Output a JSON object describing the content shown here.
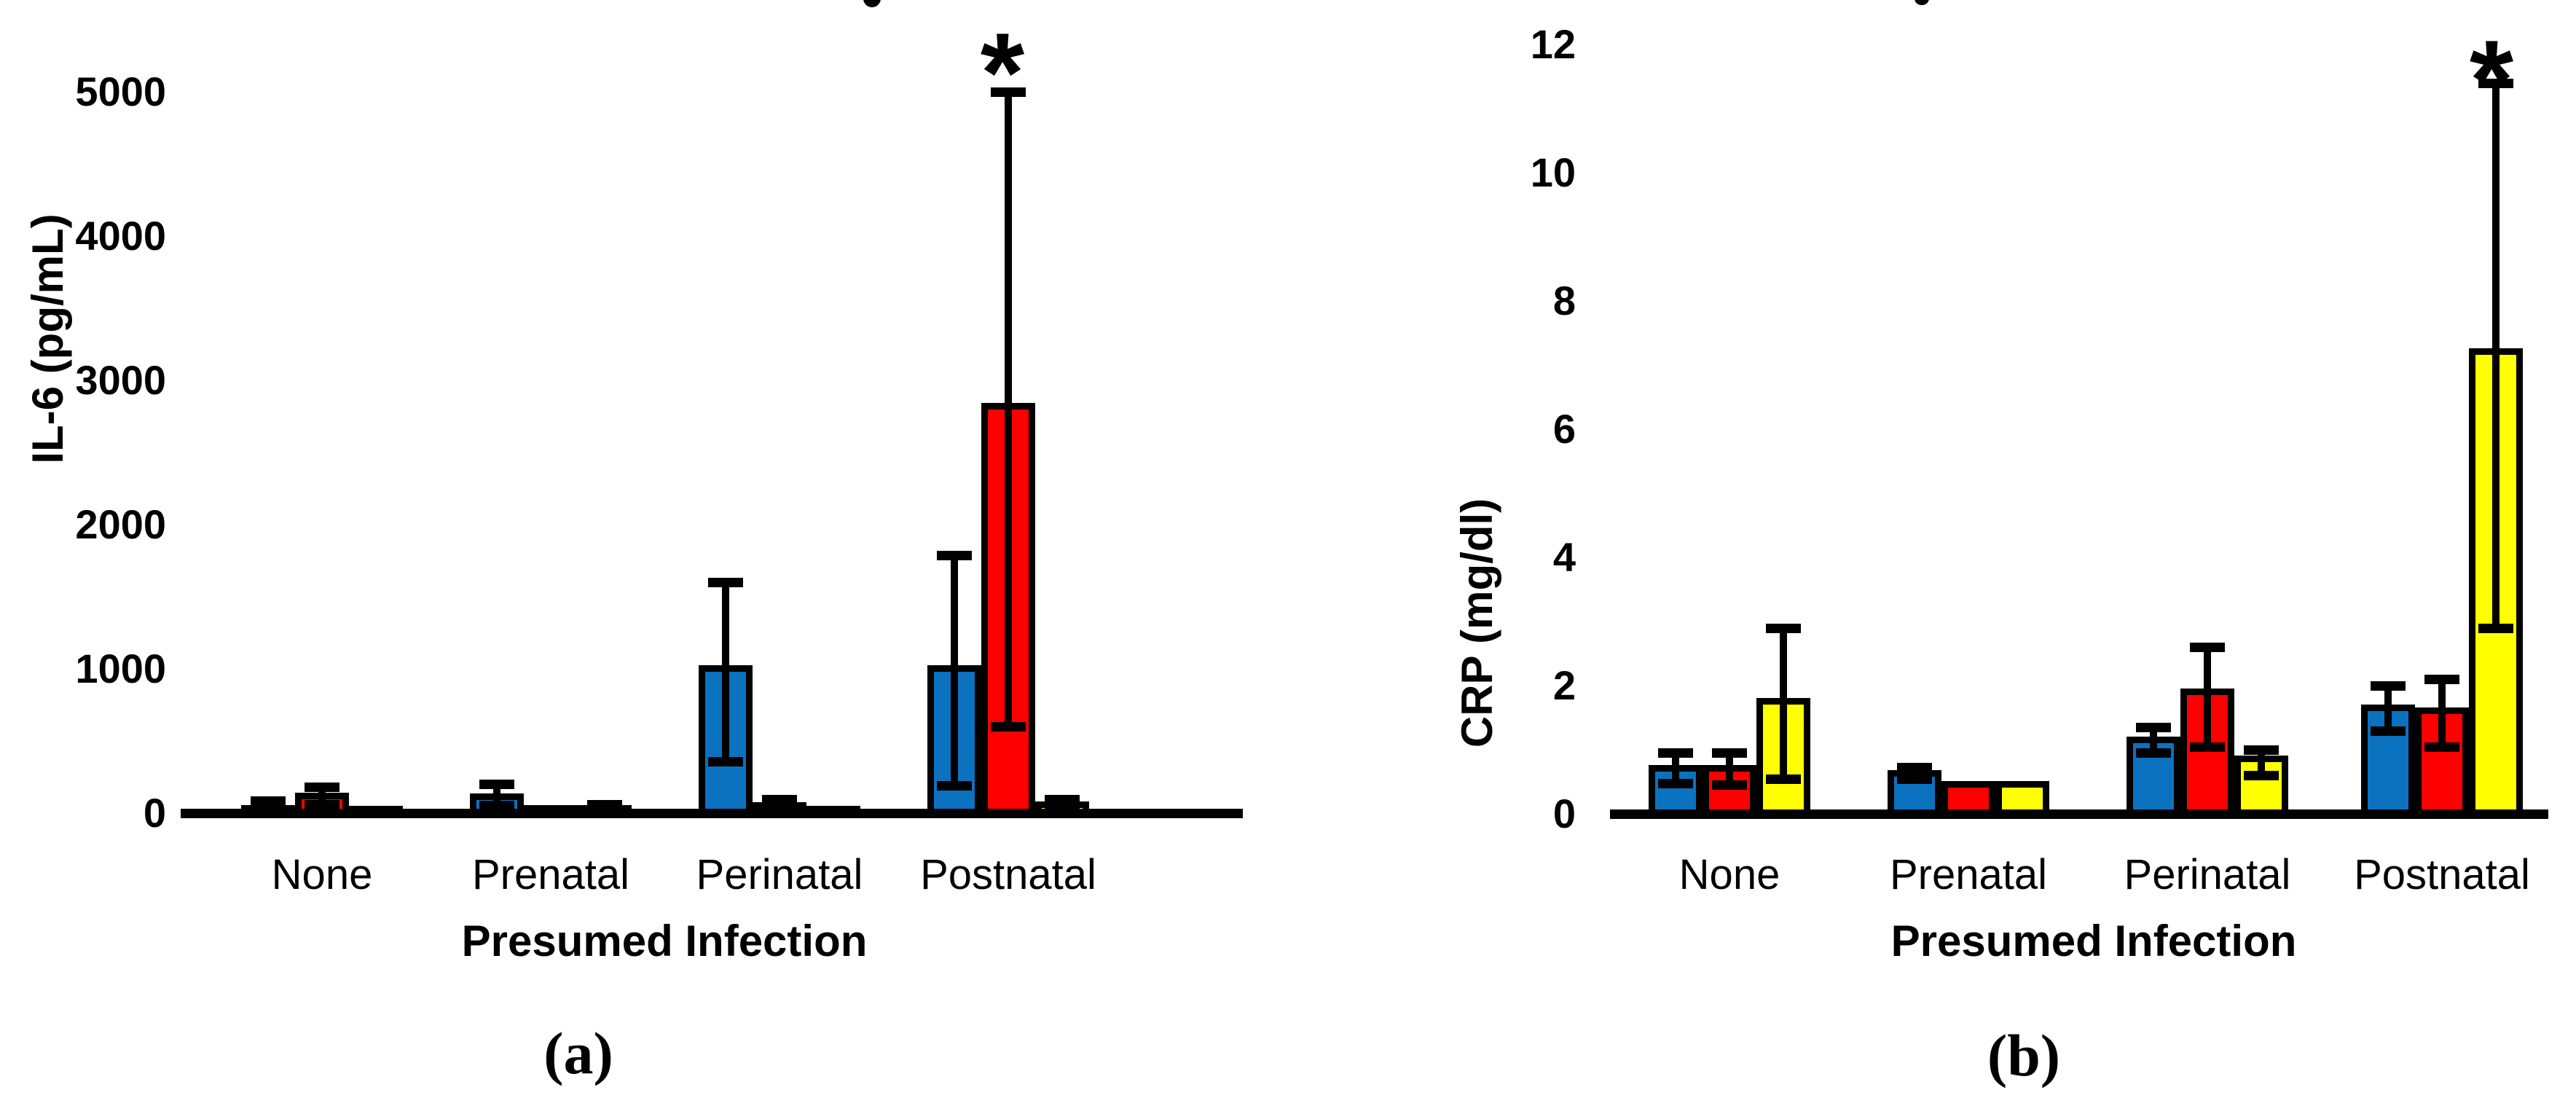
{
  "figure": {
    "background": "#ffffff",
    "significance_marker": "*",
    "colors": {
      "blue": "#0b72c0",
      "red": "#ff0000",
      "yellow": "#ffff00",
      "ink": "#000000"
    },
    "captions": {
      "a": "(a)",
      "b": "(b)"
    }
  },
  "chart_data": [
    {
      "id": "a",
      "type": "bar",
      "title": "",
      "ylabel": "IL-6 (pg/mL)",
      "xlabel": "Presumed Infection",
      "categories": [
        "None",
        "Prenatal",
        "Perinatal",
        "Postnatal"
      ],
      "yticks": [
        0,
        1000,
        2000,
        3000,
        4000,
        5000
      ],
      "ylim": [
        0,
        5000
      ],
      "grid": false,
      "legend": "none",
      "series": [
        {
          "name": "blue",
          "values": [
            30,
            110,
            1000,
            1000
          ],
          "err_low": [
            null,
            55,
            360,
            190
          ],
          "err_high": [
            85,
            200,
            1600,
            1790
          ]
        },
        {
          "name": "red",
          "values": [
            115,
            30,
            50,
            2820
          ],
          "err_low": [
            60,
            null,
            20,
            600
          ],
          "err_high": [
            180,
            null,
            95,
            5000
          ]
        },
        {
          "name": "yellow",
          "values": [
            25,
            30,
            25,
            55
          ],
          "err_low": [
            null,
            null,
            null,
            25
          ],
          "err_high": [
            null,
            60,
            null,
            95
          ]
        }
      ],
      "significance": [
        {
          "category": "Postnatal",
          "series": "red",
          "marker": "*"
        }
      ]
    },
    {
      "id": "b",
      "type": "bar",
      "title": "",
      "ylabel": "CRP (mg/dl)",
      "xlabel": "Presumed Infection",
      "categories": [
        "None",
        "Prenatal",
        "Perinatal",
        "Postnatal"
      ],
      "yticks": [
        0,
        2,
        4,
        6,
        8,
        10,
        12
      ],
      "ylim": [
        0,
        12
      ],
      "grid": false,
      "legend": "none",
      "series": [
        {
          "name": "blue",
          "values": [
            0.7,
            0.63,
            1.15,
            1.65
          ],
          "err_low": [
            0.48,
            0.54,
            0.95,
            1.3
          ],
          "err_high": [
            0.95,
            0.73,
            1.35,
            2.0
          ]
        },
        {
          "name": "red",
          "values": [
            0.7,
            0.45,
            1.9,
            1.6
          ],
          "err_low": [
            0.45,
            null,
            1.05,
            1.05
          ],
          "err_high": [
            0.95,
            null,
            2.6,
            2.1
          ]
        },
        {
          "name": "yellow",
          "values": [
            1.75,
            0.45,
            0.85,
            7.2
          ],
          "err_low": [
            0.55,
            null,
            0.6,
            2.9
          ],
          "err_high": [
            2.9,
            null,
            1.0,
            11.4
          ]
        }
      ],
      "significance": [
        {
          "category": "Postnatal",
          "series": "yellow",
          "marker": "*"
        }
      ]
    }
  ]
}
